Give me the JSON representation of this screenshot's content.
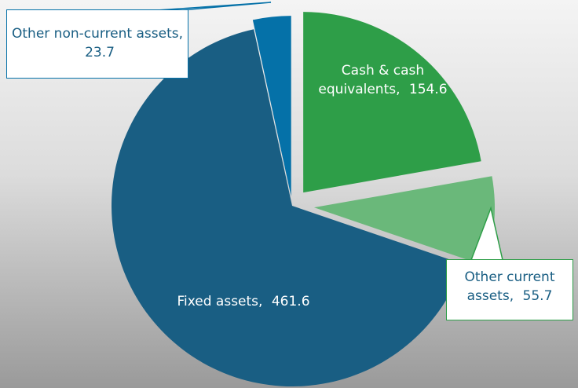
{
  "chart_data": {
    "type": "pie",
    "categories": [
      "Cash & cash equivalents",
      "Other current assets",
      "Fixed assets",
      "Other non-current assets"
    ],
    "values": [
      154.6,
      55.7,
      461.6,
      23.7
    ],
    "colors": [
      "#2e9e48",
      "#6ab87a",
      "#195e83",
      "#0571a8"
    ]
  }
}
